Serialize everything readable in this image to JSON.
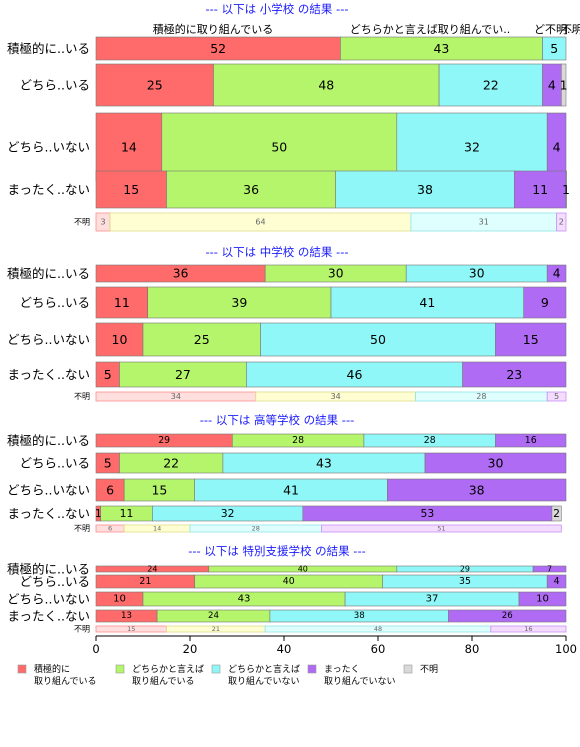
{
  "chart_data": {
    "type": "bar",
    "orientation": "horizontal",
    "stacked": true,
    "xlim": [
      0,
      100
    ],
    "xticks": [
      0,
      20,
      40,
      60,
      80,
      100
    ],
    "series": [
      {
        "name": "積極的に\n取り組んでいる",
        "color": "#ff6b6b"
      },
      {
        "name": "どちらかと言えば\n取り組んでいる",
        "color": "#b5f56b"
      },
      {
        "name": "どちらかと言えば\n取り組んでいない",
        "color": "#8ff7f7"
      },
      {
        "name": "まったく\n取り組んでいない",
        "color": "#b06bf5"
      },
      {
        "name": "不明",
        "color": "#d9d9d9"
      }
    ],
    "top_header_labels": [
      "積極的に取り組んでいる",
      "どちらかと言えば取り組んでい..",
      "ど不明..",
      "不明"
    ],
    "panels": [
      {
        "title": "--- 以下は 小学校 の結果 ---",
        "rows": [
          {
            "label": "積極的に..いる",
            "values": [
              52,
              43,
              5,
              0
            ]
          },
          {
            "label": "どちら..いる",
            "values": [
              25,
              48,
              22,
              4,
              1
            ]
          },
          {
            "label": "どちら..いない",
            "values": [
              14,
              50,
              32,
              4
            ]
          },
          {
            "label": "まったく..ない",
            "values": [
              15,
              36,
              38,
              11,
              1
            ]
          }
        ],
        "unknown": {
          "label": "不明",
          "values": [
            3,
            64,
            31,
            2
          ]
        }
      },
      {
        "title": "--- 以下は 中学校 の結果 ---",
        "rows": [
          {
            "label": "積極的に..いる",
            "values": [
              36,
              30,
              30,
              4
            ]
          },
          {
            "label": "どちら..いる",
            "values": [
              11,
              39,
              41,
              9
            ]
          },
          {
            "label": "どちら..いない",
            "values": [
              10,
              25,
              50,
              15
            ]
          },
          {
            "label": "まったく..ない",
            "values": [
              5,
              27,
              46,
              23
            ]
          }
        ],
        "unknown": {
          "label": "不明",
          "values": [
            34,
            34,
            28,
            5
          ]
        }
      },
      {
        "title": "--- 以下は 高等学校 の結果 ---",
        "rows": [
          {
            "label": "積極的に..いる",
            "values": [
              29,
              28,
              28,
              16
            ]
          },
          {
            "label": "どちら..いる",
            "values": [
              5,
              22,
              43,
              30
            ]
          },
          {
            "label": "どちら..いない",
            "values": [
              6,
              15,
              41,
              38
            ]
          },
          {
            "label": "まったく..ない",
            "values": [
              1,
              11,
              32,
              53,
              2
            ]
          }
        ],
        "unknown": {
          "label": "不明",
          "values": [
            6,
            14,
            28,
            51
          ]
        }
      },
      {
        "title": "--- 以下は 特別支援学校 の結果 ---",
        "rows": [
          {
            "label": "積極的に..いる",
            "values": [
              24,
              40,
              29,
              7
            ]
          },
          {
            "label": "どちら..いる",
            "values": [
              21,
              40,
              35,
              4
            ]
          },
          {
            "label": "どちら..いない",
            "values": [
              10,
              43,
              37,
              10
            ]
          },
          {
            "label": "まったく..ない",
            "values": [
              13,
              24,
              38,
              26
            ]
          }
        ],
        "unknown": {
          "label": "不明",
          "values": [
            15,
            21,
            48,
            16
          ]
        }
      }
    ]
  }
}
